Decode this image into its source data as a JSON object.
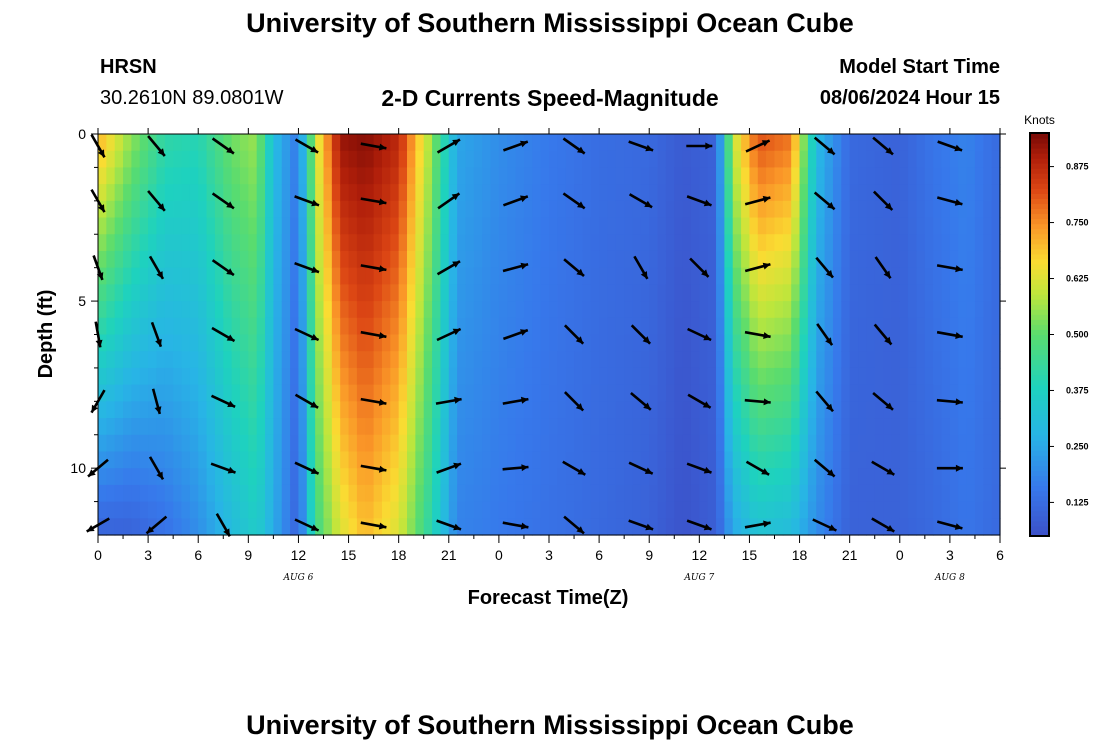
{
  "titles": {
    "top": "University of Southern Mississippi Ocean Cube",
    "bottom": "University of Southern Mississippi Ocean Cube"
  },
  "station": {
    "name": "HRSN",
    "coords": "30.2610N  89.0801W"
  },
  "chart_heading": "2-D Currents Speed-Magnitude",
  "model": {
    "label": "Model Start Time",
    "value": "08/06/2024 Hour 15"
  },
  "chart_data": {
    "type": "heatmap",
    "title": "2-D Currents Speed-Magnitude",
    "xlabel": "Forecast Time(Z)",
    "ylabel": "Depth (ft)",
    "x_range_hours_from_aug6_00z": [
      0,
      54
    ],
    "y_range_ft": [
      0,
      12
    ],
    "x_tick_labels": [
      "0",
      "3",
      "6",
      "9",
      "12",
      "15",
      "18",
      "21",
      "0",
      "3",
      "6",
      "9",
      "12",
      "15",
      "18",
      "21",
      "0",
      "3",
      "6"
    ],
    "y_tick_labels": [
      "0",
      "5",
      "10"
    ],
    "date_labels": [
      {
        "text": "AUG 6",
        "hour": 12
      },
      {
        "text": "AUG 7",
        "hour": 36
      },
      {
        "text": "AUG 8",
        "hour": 51
      }
    ],
    "colorbar": {
      "label": "Knots",
      "range": [
        0.05,
        0.95
      ],
      "ticks": [
        "0.875",
        "0.750",
        "0.625",
        "0.500",
        "0.375",
        "0.250",
        "0.125"
      ],
      "tick_values": [
        0.875,
        0.75,
        0.625,
        0.5,
        0.375,
        0.25,
        0.125
      ]
    },
    "speed_profile_knots": [
      {
        "hour": 0,
        "surface": 0.72,
        "bottom": 0.1
      },
      {
        "hour": 2,
        "surface": 0.55,
        "bottom": 0.1
      },
      {
        "hour": 4,
        "surface": 0.42,
        "bottom": 0.14
      },
      {
        "hour": 6,
        "surface": 0.4,
        "bottom": 0.2
      },
      {
        "hour": 8,
        "surface": 0.52,
        "bottom": 0.3
      },
      {
        "hour": 9.5,
        "surface": 0.56,
        "bottom": 0.36
      },
      {
        "hour": 10.5,
        "surface": 0.3,
        "bottom": 0.26
      },
      {
        "hour": 12,
        "surface": 0.16,
        "bottom": 0.1
      },
      {
        "hour": 13,
        "surface": 0.6,
        "bottom": 0.45
      },
      {
        "hour": 14.5,
        "surface": 0.92,
        "bottom": 0.62
      },
      {
        "hour": 16,
        "surface": 0.94,
        "bottom": 0.7
      },
      {
        "hour": 18,
        "surface": 0.88,
        "bottom": 0.62
      },
      {
        "hour": 20,
        "surface": 0.55,
        "bottom": 0.4
      },
      {
        "hour": 21.5,
        "surface": 0.25,
        "bottom": 0.18
      },
      {
        "hour": 24,
        "surface": 0.2,
        "bottom": 0.16
      },
      {
        "hour": 27,
        "surface": 0.16,
        "bottom": 0.14
      },
      {
        "hour": 30,
        "surface": 0.13,
        "bottom": 0.12
      },
      {
        "hour": 33,
        "surface": 0.12,
        "bottom": 0.1
      },
      {
        "hour": 35,
        "surface": 0.08,
        "bottom": 0.06
      },
      {
        "hour": 37,
        "surface": 0.1,
        "bottom": 0.09
      },
      {
        "hour": 38,
        "surface": 0.6,
        "bottom": 0.25
      },
      {
        "hour": 39.5,
        "surface": 0.82,
        "bottom": 0.32
      },
      {
        "hour": 41.5,
        "surface": 0.78,
        "bottom": 0.3
      },
      {
        "hour": 43,
        "surface": 0.3,
        "bottom": 0.2
      },
      {
        "hour": 45,
        "surface": 0.12,
        "bottom": 0.1
      },
      {
        "hour": 48,
        "surface": 0.1,
        "bottom": 0.1
      },
      {
        "hour": 50,
        "surface": 0.15,
        "bottom": 0.12
      },
      {
        "hour": 52,
        "surface": 0.18,
        "bottom": 0.15
      },
      {
        "hour": 54,
        "surface": 0.12,
        "bottom": 0.12
      }
    ],
    "vector_hours": [
      0,
      3.5,
      7.5,
      12.5,
      16.5,
      21,
      25,
      28.5,
      32.5,
      36,
      39.5,
      43.5,
      47,
      51
    ],
    "vector_depths_ft": [
      0,
      2,
      4,
      6,
      8,
      10,
      12
    ],
    "vector_directions_deg": [
      [
        -60,
        -50,
        -35,
        -30,
        -10,
        30,
        20,
        -35,
        -20,
        0,
        25,
        -40,
        -40,
        -20
      ],
      [
        -60,
        -50,
        -35,
        -20,
        -10,
        35,
        20,
        -35,
        -30,
        -20,
        15,
        -40,
        -45,
        -15
      ],
      [
        -70,
        -60,
        -35,
        -20,
        -10,
        30,
        15,
        -40,
        -60,
        -45,
        15,
        -50,
        -55,
        -10
      ],
      [
        -80,
        -70,
        -30,
        -25,
        -10,
        25,
        20,
        -45,
        -45,
        -25,
        -10,
        -55,
        -50,
        -10
      ],
      [
        -120,
        -75,
        -25,
        -30,
        -10,
        10,
        10,
        -45,
        -40,
        -30,
        -5,
        -50,
        -40,
        -5
      ],
      [
        -140,
        -60,
        -20,
        -25,
        -10,
        20,
        5,
        -30,
        -25,
        -20,
        -30,
        -40,
        -30,
        0
      ],
      [
        -150,
        -140,
        -60,
        -25,
        -10,
        -20,
        -10,
        -40,
        -20,
        -20,
        10,
        -25,
        -30,
        -15
      ]
    ]
  }
}
